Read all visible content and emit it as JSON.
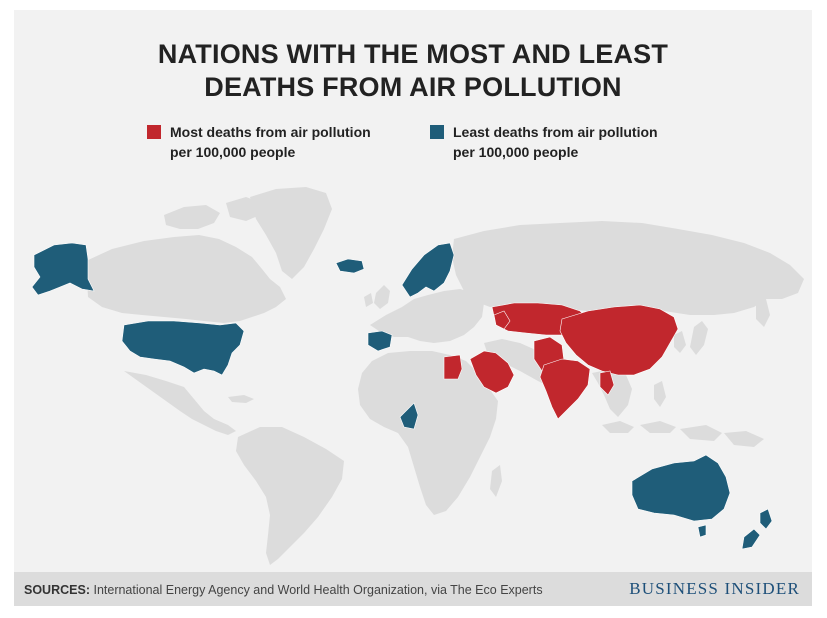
{
  "title": {
    "line1": "NATIONS WITH THE MOST AND LEAST",
    "line2": "DEATHS FROM AIR POLLUTION"
  },
  "legend": [
    {
      "key": "most",
      "line1": "Most deaths from air pollution",
      "line2": "per 100,000 people",
      "color": "#c1272d"
    },
    {
      "key": "least",
      "line1": "Least deaths from air pollution",
      "line2": "per 100,000 people",
      "color": "#1f5d79"
    }
  ],
  "map": {
    "land_color": "#dcdcdc",
    "background_color": "#f2f2f2",
    "most_deaths_color": "#c1272d",
    "least_deaths_color": "#1f5d79"
  },
  "footer": {
    "sources_label": "SOURCES:",
    "sources_text": "International Energy Agency and World Health Organization, via The Eco Experts",
    "brand": "BUSINESS INSIDER"
  }
}
